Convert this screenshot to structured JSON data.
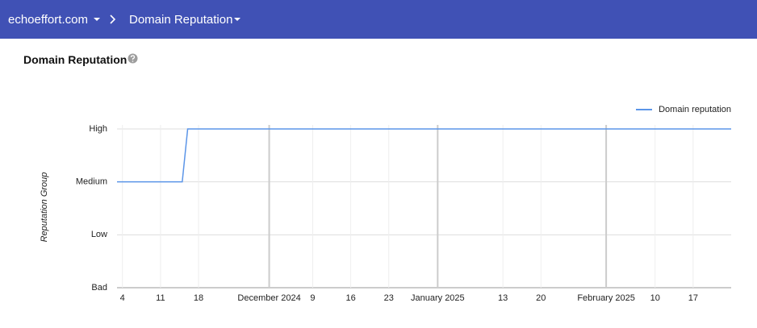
{
  "header": {
    "site": "echoeffort.com",
    "page": "Domain Reputation"
  },
  "chart_data": {
    "type": "line",
    "title": "Domain Reputation",
    "y_label": "Reputation Group",
    "x": [
      "2024-11-03",
      "2024-11-15",
      "2024-11-16",
      "2025-02-24"
    ],
    "series": [
      {
        "name": "Domain reputation",
        "color": "#5b95e8",
        "values": [
          2,
          2,
          3,
          3
        ]
      }
    ],
    "xlim": [
      "2024-11-03",
      "2025-02-24"
    ],
    "xticks": [
      {
        "value": "2024-11-04",
        "label": "4"
      },
      {
        "value": "2024-11-11",
        "label": "11"
      },
      {
        "value": "2024-11-18",
        "label": "18"
      },
      {
        "value": "2024-12-01",
        "label": "December 2024"
      },
      {
        "value": "2024-12-09",
        "label": "9"
      },
      {
        "value": "2024-12-16",
        "label": "16"
      },
      {
        "value": "2024-12-23",
        "label": "23"
      },
      {
        "value": "2025-01-01",
        "label": "January 2025"
      },
      {
        "value": "2025-01-13",
        "label": "13"
      },
      {
        "value": "2025-01-20",
        "label": "20"
      },
      {
        "value": "2025-02-01",
        "label": "February 2025"
      },
      {
        "value": "2025-02-10",
        "label": "10"
      },
      {
        "value": "2025-02-17",
        "label": "17"
      }
    ],
    "ylim": [
      0,
      3
    ],
    "yticks": [
      {
        "value": 0,
        "label": "Bad"
      },
      {
        "value": 1,
        "label": "Low"
      },
      {
        "value": 2,
        "label": "Medium"
      },
      {
        "value": 3,
        "label": "High"
      }
    ],
    "grid": true,
    "legend": "top-right"
  }
}
